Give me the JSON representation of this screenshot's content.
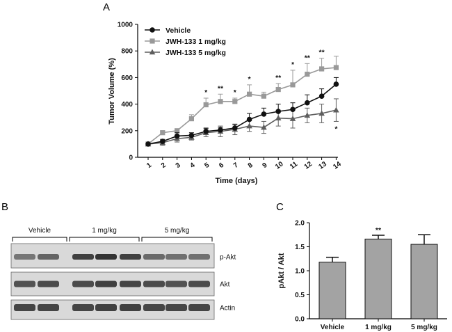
{
  "panels": {
    "a": "A",
    "b": "B",
    "c": "C"
  },
  "colors": {
    "vehicle": "#111111",
    "dose1": "#999999",
    "dose5": "#5e5e5e",
    "bar": "#a3a3a3",
    "band": "#2a2a2a"
  },
  "chart_data": [
    {
      "type": "line",
      "panel": "A",
      "title": "",
      "xlabel": "Time (days)",
      "ylabel": "Tumor Volume (%)",
      "ylim": [
        0,
        1000
      ],
      "yticks": [
        0,
        200,
        400,
        600,
        800,
        1000
      ],
      "x": [
        1,
        2,
        3,
        4,
        5,
        6,
        7,
        8,
        9,
        10,
        11,
        12,
        13,
        14
      ],
      "x_tick_labels": [
        "1",
        "2",
        "3",
        "4",
        "5",
        "6",
        "7",
        "8",
        "9",
        "10",
        "11",
        "12",
        "13",
        "14"
      ],
      "legend": [
        "Vehicle",
        "JWH-133 1 mg/kg",
        "JWH-133 5 mg/kg"
      ],
      "legend_position": "top-left",
      "series": [
        {
          "name": "Vehicle",
          "marker": "circle",
          "color": "#111111",
          "values": [
            100,
            120,
            160,
            165,
            195,
            205,
            220,
            285,
            325,
            345,
            360,
            410,
            460,
            550
          ],
          "errors": [
            0,
            15,
            25,
            20,
            25,
            20,
            25,
            45,
            45,
            55,
            50,
            60,
            55,
            50
          ]
        },
        {
          "name": "JWH-133 1 mg/kg",
          "marker": "square",
          "color": "#999999",
          "values": [
            100,
            185,
            200,
            290,
            395,
            420,
            420,
            475,
            460,
            510,
            545,
            625,
            665,
            675
          ],
          "errors": [
            0,
            10,
            10,
            30,
            50,
            55,
            25,
            70,
            30,
            45,
            110,
            80,
            80,
            85
          ]
        },
        {
          "name": "JWH-133 5 mg/kg",
          "marker": "triangle",
          "color": "#5e5e5e",
          "values": [
            100,
            110,
            140,
            150,
            185,
            195,
            210,
            235,
            225,
            295,
            290,
            315,
            330,
            355
          ],
          "errors": [
            0,
            20,
            25,
            20,
            30,
            40,
            40,
            40,
            45,
            60,
            70,
            55,
            70,
            85
          ]
        }
      ],
      "annotations": [
        {
          "x": 5,
          "text": "*"
        },
        {
          "x": 6,
          "text": "**"
        },
        {
          "x": 7,
          "text": "*"
        },
        {
          "x": 8,
          "text": "*"
        },
        {
          "x": 10,
          "text": "**"
        },
        {
          "x": 11,
          "text": "*"
        },
        {
          "x": 12,
          "text": "**"
        },
        {
          "x": 13,
          "text": "**"
        },
        {
          "x": 14,
          "text": "*",
          "series": "JWH-133 5 mg/kg",
          "below": true
        }
      ]
    },
    {
      "type": "bar",
      "panel": "C",
      "title": "",
      "xlabel": "",
      "ylabel": "pAkt / Akt",
      "ylim": [
        0,
        2.0
      ],
      "yticks": [
        "0.0",
        "0.5",
        "1.0",
        "1.5",
        "2.0"
      ],
      "categories": [
        "Vehicle",
        "1 mg/kg",
        "5 mg/kg"
      ],
      "values": [
        1.18,
        1.66,
        1.55
      ],
      "errors": [
        0.1,
        0.08,
        0.2
      ],
      "annotations": [
        {
          "category": "1 mg/kg",
          "text": "**"
        }
      ]
    }
  ],
  "blot": {
    "groups": [
      "Vehicle",
      "1 mg/kg",
      "5 mg/kg"
    ],
    "rows": [
      "p-Akt",
      "Akt",
      "Actin"
    ],
    "intensity": [
      [
        0.45,
        0.6,
        0.9,
        1.0,
        0.9,
        0.55,
        0.5,
        0.5
      ],
      [
        0.75,
        0.8,
        0.8,
        0.9,
        0.85,
        0.8,
        0.75,
        0.8
      ],
      [
        0.85,
        0.85,
        0.85,
        0.9,
        0.9,
        0.85,
        0.85,
        0.85
      ]
    ]
  }
}
